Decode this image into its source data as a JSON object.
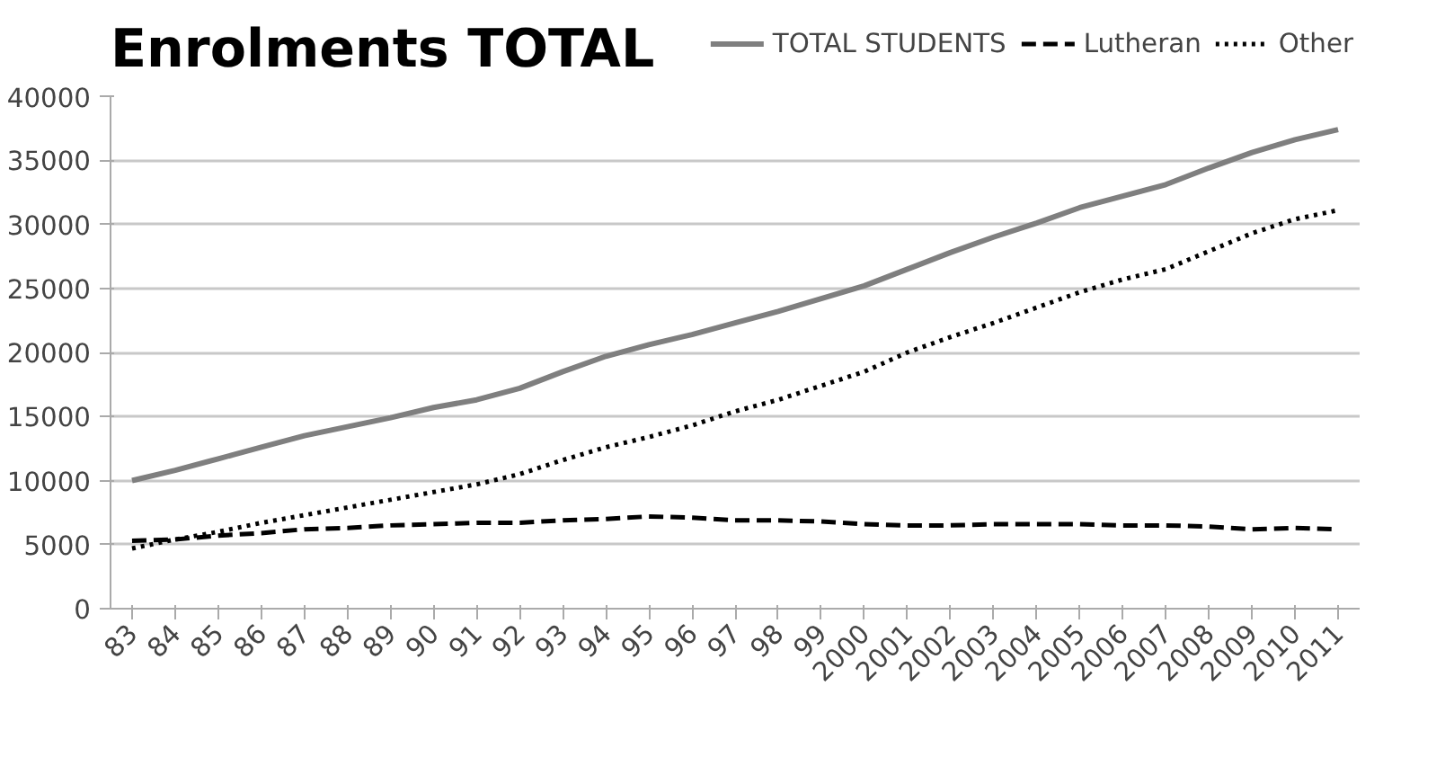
{
  "chart_data": {
    "type": "line",
    "title": "Enrolments TOTAL",
    "categories": [
      "83",
      "84",
      "85",
      "86",
      "87",
      "88",
      "89",
      "90",
      "91",
      "92",
      "93",
      "94",
      "95",
      "96",
      "97",
      "98",
      "99",
      "2000",
      "2001",
      "2002",
      "2003",
      "2004",
      "2005",
      "2006",
      "2007",
      "2008",
      "2009",
      "2010",
      "2011"
    ],
    "series": [
      {
        "name": "TOTAL STUDENTS",
        "color": "#7f7f7f",
        "line_style": "solid",
        "values": [
          10000,
          10800,
          11700,
          12600,
          13500,
          14200,
          14900,
          15700,
          16300,
          17200,
          18500,
          19700,
          20600,
          21400,
          22300,
          23200,
          24200,
          25200,
          26500,
          27800,
          29000,
          30100,
          31300,
          32200,
          33100,
          34400,
          35600,
          36600,
          37400
        ]
      },
      {
        "name": "Lutheran",
        "color": "#000000",
        "line_style": "dashed",
        "values": [
          5300,
          5400,
          5700,
          5900,
          6200,
          6300,
          6500,
          6600,
          6700,
          6700,
          6900,
          7000,
          7200,
          7100,
          6900,
          6900,
          6800,
          6600,
          6500,
          6500,
          6600,
          6600,
          6600,
          6500,
          6500,
          6400,
          6200,
          6300,
          6200
        ]
      },
      {
        "name": "Other",
        "color": "#000000",
        "line_style": "dotted",
        "values": [
          4700,
          5400,
          6000,
          6700,
          7300,
          7900,
          8500,
          9100,
          9700,
          10500,
          11600,
          12600,
          13400,
          14300,
          15400,
          16300,
          17400,
          18500,
          20000,
          21200,
          22300,
          23500,
          24700,
          25700,
          26500,
          27900,
          29300,
          30400,
          31100
        ]
      }
    ],
    "ylim": [
      0,
      40000
    ],
    "yticks": [
      0,
      5000,
      10000,
      15000,
      20000,
      25000,
      30000,
      35000,
      40000
    ],
    "grid": "y",
    "legend": "top right"
  }
}
